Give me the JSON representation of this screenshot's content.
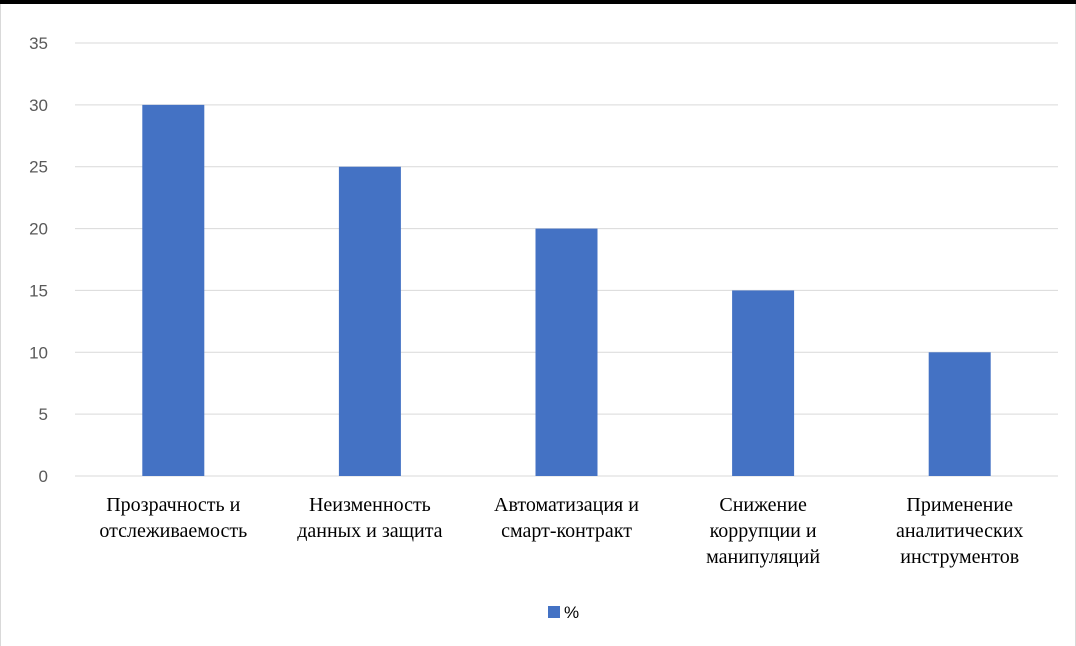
{
  "chart_data": {
    "type": "bar",
    "categories": [
      [
        "Прозрачность и",
        "отслеживаемость"
      ],
      [
        "Неизменность",
        "данных и защита"
      ],
      [
        "Автоматизация и",
        "смарт-контракт"
      ],
      [
        "Снижение",
        "коррупции и",
        "манипуляций"
      ],
      [
        "Применение",
        "аналитических",
        "инструментов"
      ]
    ],
    "series": [
      {
        "name": "%",
        "values": [
          30,
          25,
          20,
          15,
          10
        ],
        "color": "#4472c4"
      }
    ],
    "ylim": [
      0,
      35
    ],
    "yticks": [
      0,
      5,
      10,
      15,
      20,
      25,
      30,
      35
    ],
    "grid": true,
    "legend": "bottom"
  }
}
